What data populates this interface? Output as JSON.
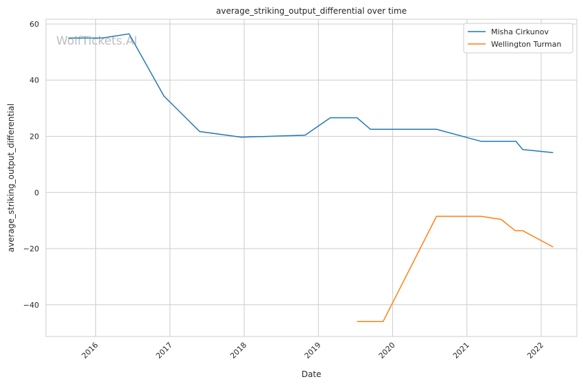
{
  "chart_data": {
    "type": "line",
    "title": "average_striking_output_differential over time",
    "xlabel": "Date",
    "ylabel": "average_striking_output_differential",
    "watermark": "WolfTickets.AI",
    "xlim": [
      2015.33,
      2022.48
    ],
    "ylim": [
      -51.3,
      61.7
    ],
    "xticks": [
      2016,
      2017,
      2018,
      2019,
      2020,
      2021,
      2022
    ],
    "xtick_labels": [
      "2016",
      "2017",
      "2018",
      "2019",
      "2020",
      "2021",
      "2022"
    ],
    "yticks": [
      -40,
      -20,
      0,
      20,
      40,
      60
    ],
    "ytick_labels": [
      "−40",
      "−20",
      "0",
      "20",
      "40",
      "60"
    ],
    "grid": true,
    "legend_position": "top-right",
    "series": [
      {
        "name": "Misha Cirkunov",
        "color": "#1f77b4",
        "x": [
          2015.63,
          2016.09,
          2016.45,
          2016.92,
          2017.4,
          2017.96,
          2018.82,
          2019.16,
          2019.52,
          2019.7,
          2020.59,
          2021.19,
          2021.66,
          2021.75,
          2022.16
        ],
        "y": [
          55,
          55,
          56.5,
          34.3,
          21.7,
          19.7,
          20.4,
          26.6,
          26.6,
          22.5,
          22.5,
          18.2,
          18.2,
          15.3,
          14.2
        ]
      },
      {
        "name": "Wellington Turman",
        "color": "#ff7f0e",
        "x": [
          2019.52,
          2019.87,
          2020.59,
          2021.19,
          2021.46,
          2021.65,
          2021.75,
          2022.16
        ],
        "y": [
          -46,
          -46,
          -8.5,
          -8.5,
          -9.6,
          -13.6,
          -13.6,
          -19.4
        ]
      }
    ]
  }
}
